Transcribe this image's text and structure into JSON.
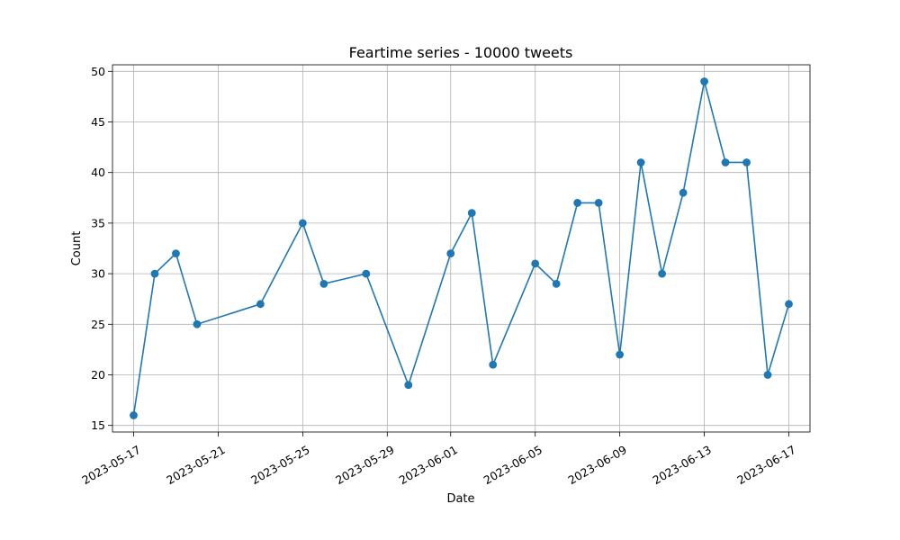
{
  "chart_data": {
    "type": "line",
    "title": "Feartime series - 10000 tweets",
    "xlabel": "Date",
    "ylabel": "Count",
    "x": [
      "2023-05-17",
      "2023-05-18",
      "2023-05-19",
      "2023-05-20",
      "2023-05-23",
      "2023-05-25",
      "2023-05-26",
      "2023-05-28",
      "2023-05-30",
      "2023-06-01",
      "2023-06-02",
      "2023-06-03",
      "2023-06-05",
      "2023-06-06",
      "2023-06-07",
      "2023-06-08",
      "2023-06-09",
      "2023-06-10",
      "2023-06-11",
      "2023-06-12",
      "2023-06-13",
      "2023-06-14",
      "2023-06-15",
      "2023-06-16",
      "2023-06-17"
    ],
    "values": [
      16,
      30,
      32,
      25,
      27,
      35,
      29,
      30,
      19,
      32,
      36,
      21,
      31,
      29,
      37,
      37,
      22,
      41,
      30,
      38,
      49,
      41,
      41,
      20,
      27
    ],
    "xlim": [
      "2023-05-16",
      "2023-06-18"
    ],
    "ylim": [
      14.35,
      50.65
    ],
    "x_ticks": [
      "2023-05-17",
      "2023-05-21",
      "2023-05-25",
      "2023-05-29",
      "2023-06-01",
      "2023-06-05",
      "2023-06-09",
      "2023-06-13",
      "2023-06-17"
    ],
    "y_ticks": [
      15,
      20,
      25,
      30,
      35,
      40,
      45,
      50
    ],
    "grid": true,
    "line_color": "#1f77b4",
    "marker": "circle"
  }
}
